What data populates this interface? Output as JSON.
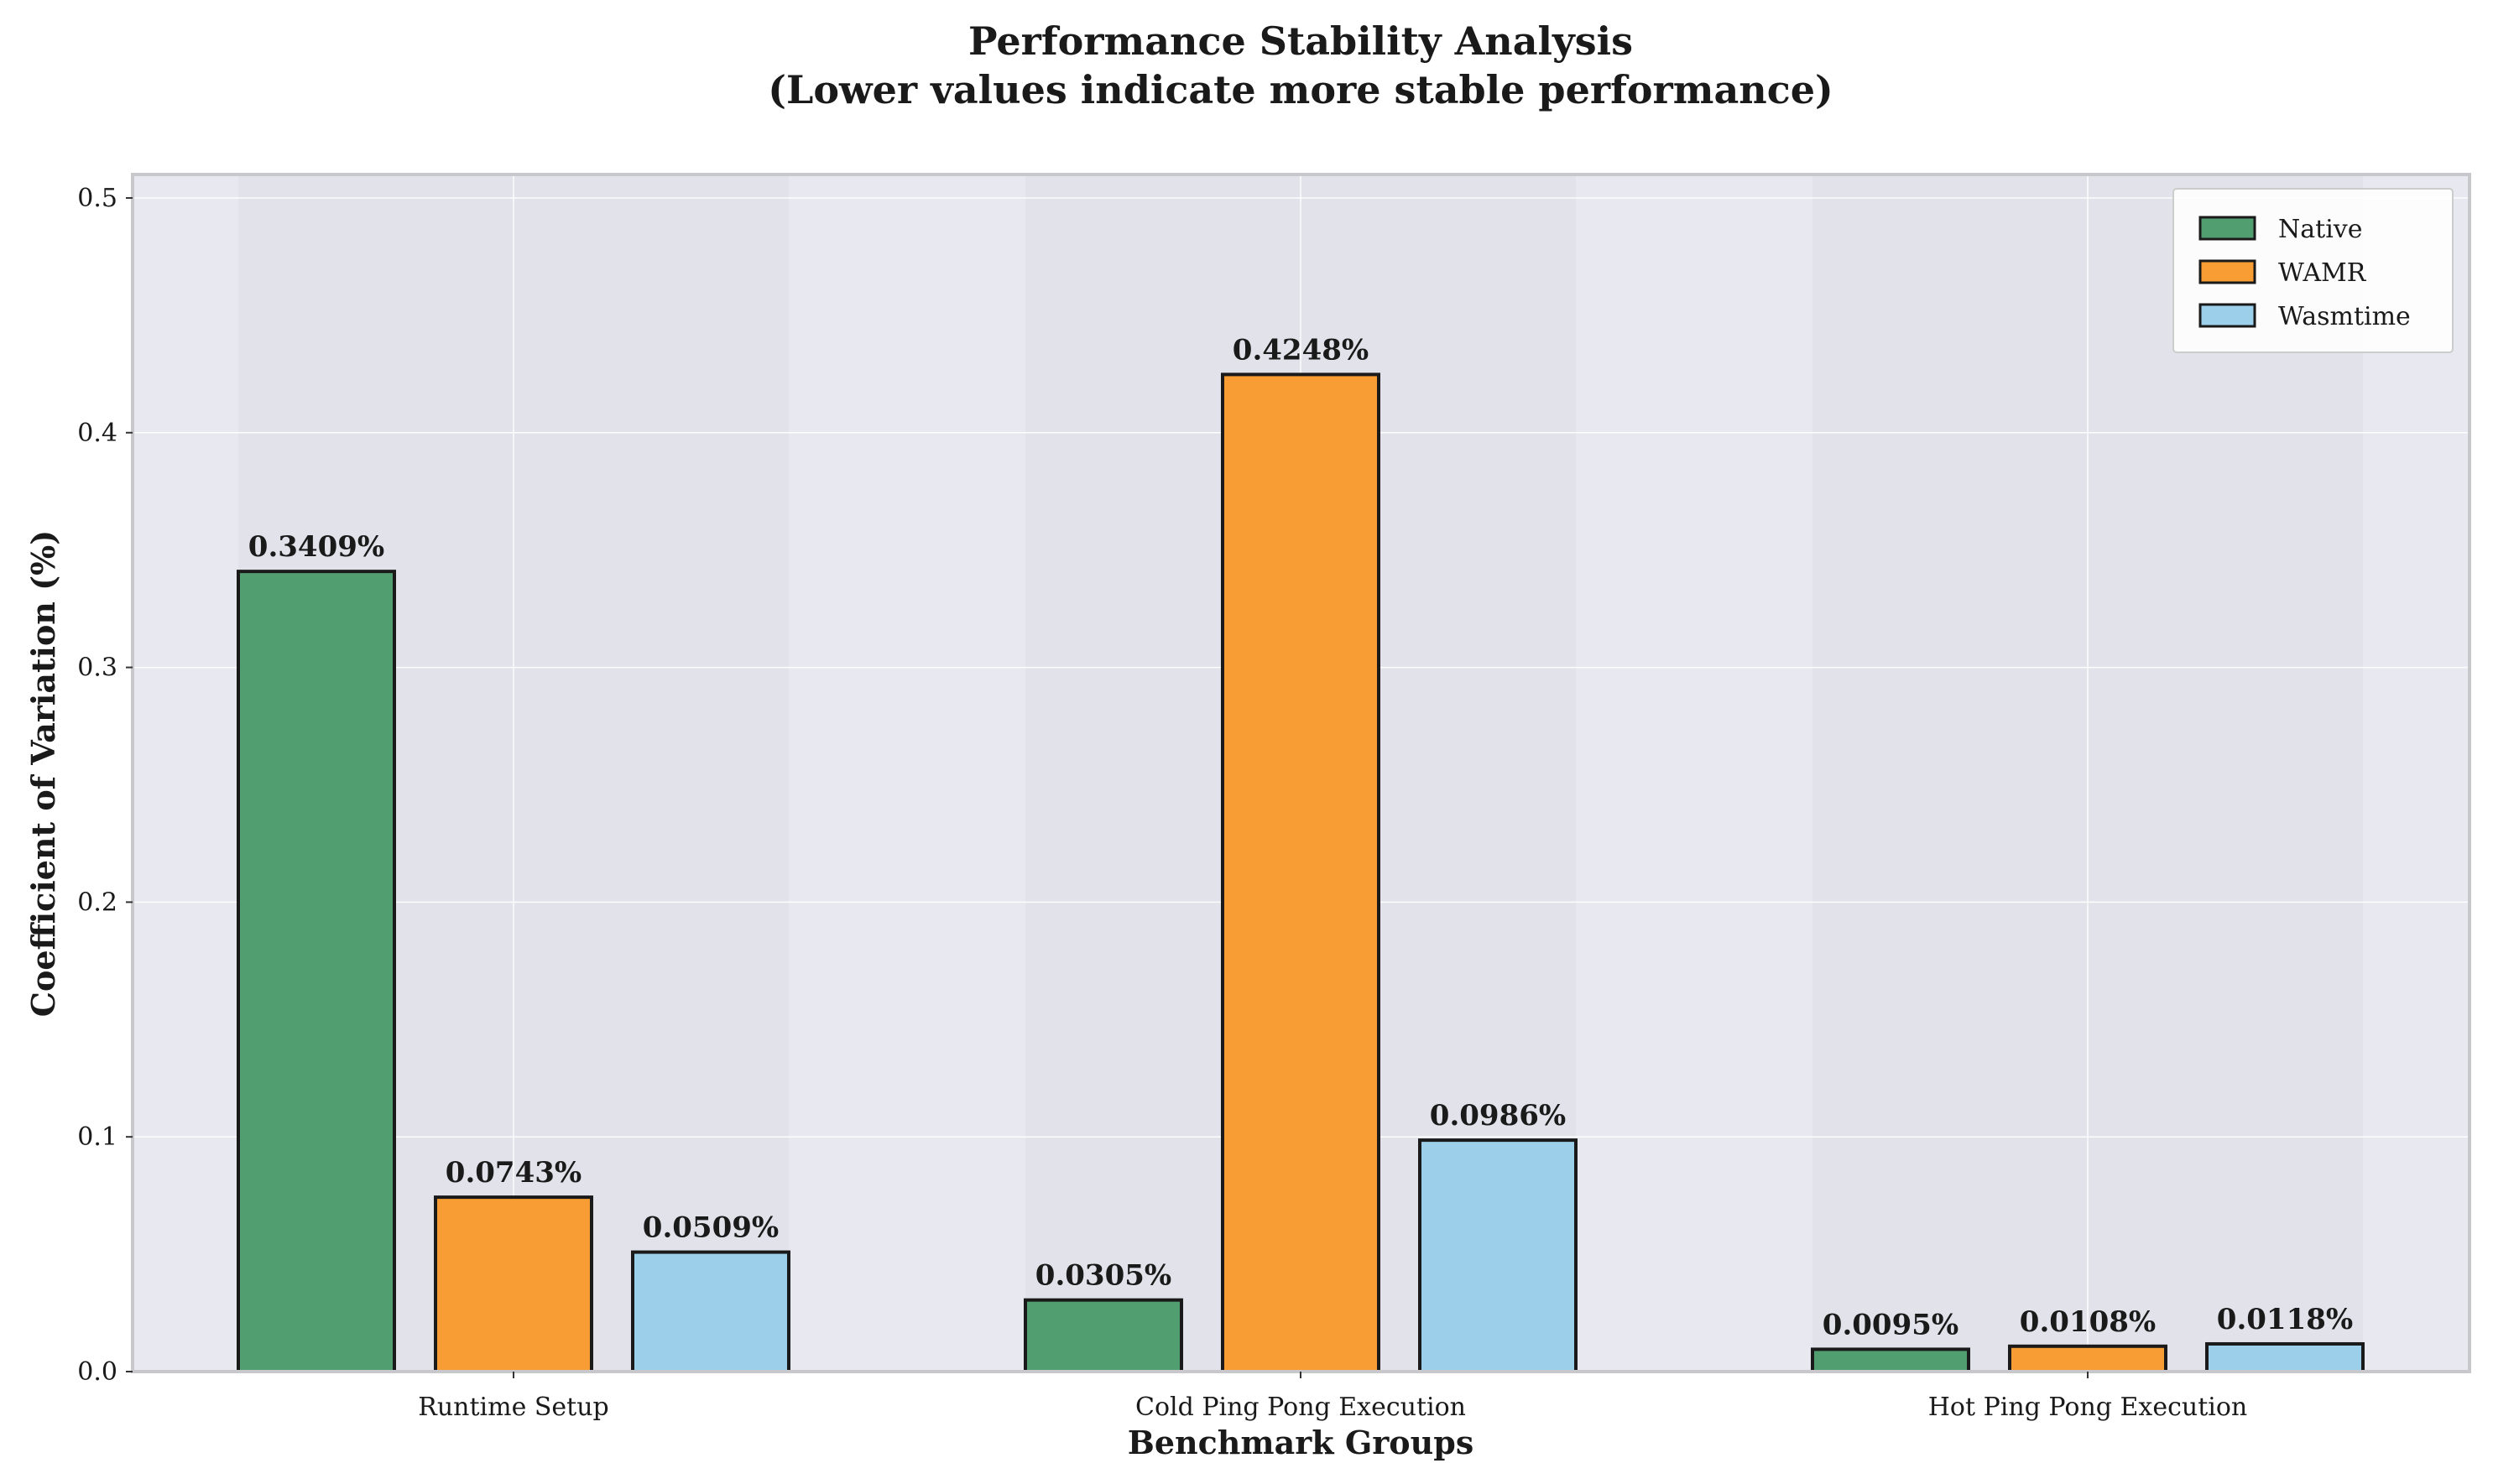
{
  "chart_data": {
    "type": "bar",
    "title": "Performance Stability Analysis",
    "subtitle": "(Lower values indicate more stable performance)",
    "xlabel": "Benchmark Groups",
    "ylabel": "Coefficient of Variation (%)",
    "categories": [
      "Runtime Setup",
      "Cold Ping Pong Execution",
      "Hot Ping Pong Execution"
    ],
    "series": [
      {
        "name": "Native",
        "color": "#519E71",
        "values": [
          0.3409,
          0.0305,
          0.0095
        ],
        "labels": [
          "0.3409%",
          "0.0305%",
          "0.0095%"
        ]
      },
      {
        "name": "WAMR",
        "color": "#F79D33",
        "values": [
          0.0743,
          0.4248,
          0.0108
        ],
        "labels": [
          "0.0743%",
          "0.4248%",
          "0.0108%"
        ]
      },
      {
        "name": "Wasmtime",
        "color": "#9BCFEA",
        "values": [
          0.0509,
          0.0986,
          0.0118
        ],
        "labels": [
          "0.0509%",
          "0.0986%",
          "0.0118%"
        ]
      }
    ],
    "yticks": [
      "0.0",
      "0.1",
      "0.2",
      "0.3",
      "0.4",
      "0.5"
    ],
    "ylim": [
      0,
      0.51
    ],
    "grid": true,
    "legend_position": "top-right",
    "plot_background": "#E8E8F0"
  }
}
